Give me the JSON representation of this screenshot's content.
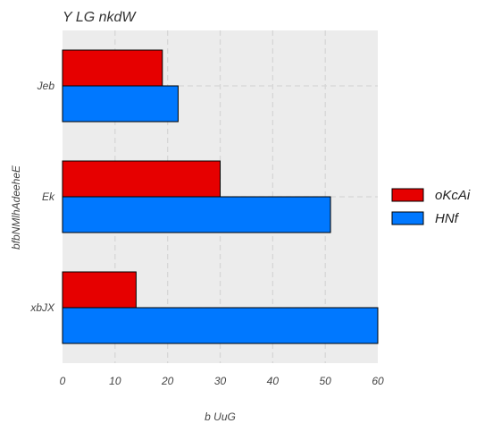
{
  "chart_data": {
    "type": "bar",
    "orientation": "horizontal",
    "title": "Y  LG nkdW",
    "xlabel": "b UuG",
    "ylabel": "bfbNMlhAdeeheE",
    "categories": [
      "Jeb",
      "Ek",
      "xbJX"
    ],
    "series": [
      {
        "name": "oKcAi",
        "color": "#e60000",
        "values": [
          19,
          30,
          14
        ]
      },
      {
        "name": "HNf",
        "color": "#0078ff",
        "values": [
          22,
          51,
          60
        ]
      }
    ],
    "xlim": [
      0,
      60
    ],
    "xticks": [
      "0",
      "10",
      "20",
      "30",
      "40",
      "50",
      "60"
    ],
    "grid": true,
    "legend_position": "right",
    "background": "#ececec"
  }
}
